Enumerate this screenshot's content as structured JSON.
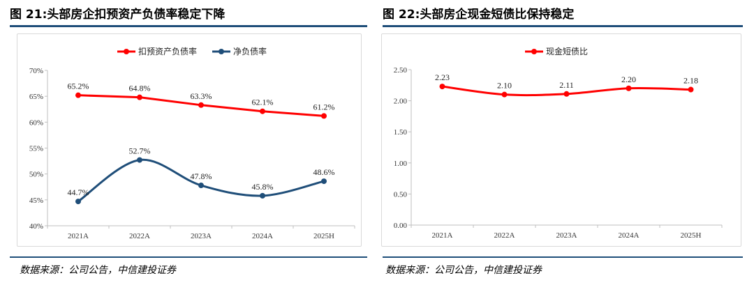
{
  "chart_data": [
    {
      "type": "line",
      "title": "图 21:头部房企扣预资产负债率稳定下降",
      "source": "数据来源：公司公告，中信建投证券",
      "categories": [
        "2021A",
        "2022A",
        "2023A",
        "2024A",
        "2025H"
      ],
      "ylim": [
        40,
        70
      ],
      "yticks": [
        40,
        45,
        50,
        55,
        60,
        65,
        70
      ],
      "ytick_labels": [
        "40%",
        "45%",
        "50%",
        "55%",
        "60%",
        "65%",
        "70%"
      ],
      "legend_position": "top-center",
      "grid": false,
      "series": [
        {
          "name": "扣预资产负债率",
          "color": "#ff0000",
          "values": [
            65.2,
            64.8,
            63.3,
            62.1,
            61.2
          ],
          "labels": [
            "65.2%",
            "64.8%",
            "63.3%",
            "62.1%",
            "61.2%"
          ],
          "smooth": false
        },
        {
          "name": "净负债率",
          "color": "#1f4e79",
          "values": [
            44.7,
            52.7,
            47.8,
            45.8,
            48.6
          ],
          "labels": [
            "44.7%",
            "52.7%",
            "47.8%",
            "45.8%",
            "48.6%"
          ],
          "smooth": true
        }
      ]
    },
    {
      "type": "line",
      "title": "图 22:头部房企现金短债比保持稳定",
      "source": "数据来源：公司公告，中信建投证券",
      "categories": [
        "2021A",
        "2022A",
        "2023A",
        "2024A",
        "2025H"
      ],
      "ylim": [
        0,
        2.5
      ],
      "yticks": [
        0,
        0.5,
        1.0,
        1.5,
        2.0,
        2.5
      ],
      "ytick_labels": [
        "0.00",
        "0.50",
        "1.00",
        "1.50",
        "2.00",
        "2.50"
      ],
      "legend_position": "top-center",
      "grid": false,
      "series": [
        {
          "name": "现金短债比",
          "color": "#ff0000",
          "values": [
            2.23,
            2.1,
            2.11,
            2.2,
            2.18
          ],
          "labels": [
            "2.23",
            "2.10",
            "2.11",
            "2.20",
            "2.18"
          ],
          "smooth": true
        }
      ]
    }
  ]
}
